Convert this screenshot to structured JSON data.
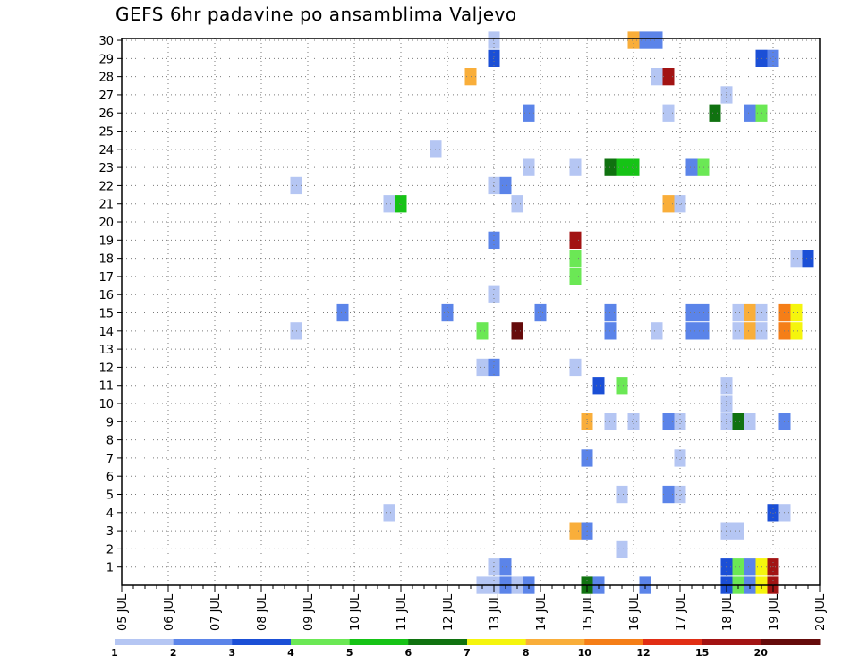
{
  "title": "GEFS 6hr padavine po ansamblima Valjevo",
  "chart_data": {
    "type": "heatmap",
    "title": "GEFS 6hr padavine po ansamblima Valjevo",
    "x_categories": [
      "05 JUL",
      "06 JUL",
      "07 JUL",
      "08 JUL",
      "09 JUL",
      "10 JUL",
      "11 JUL",
      "12 JUL",
      "13 JUL",
      "14 JUL",
      "15 JUL",
      "16 JUL",
      "17 JUL",
      "18 JUL",
      "19 JUL",
      "20 JUL"
    ],
    "x_range_days": [
      5,
      20
    ],
    "y_tick_labels": [
      "1",
      "2",
      "3",
      "4",
      "5",
      "6",
      "7",
      "8",
      "9",
      "10",
      "11",
      "12",
      "13",
      "14",
      "15",
      "16",
      "17",
      "18",
      "19",
      "20",
      "21",
      "22",
      "23",
      "24",
      "25",
      "26",
      "27",
      "28",
      "29",
      "30"
    ],
    "y_range": [
      0,
      30
    ],
    "grid": true,
    "colorbar": {
      "labels": [
        "1",
        "2",
        "3",
        "4",
        "5",
        "6",
        "7",
        "8",
        "10",
        "12",
        "15",
        "20"
      ],
      "colors": [
        "#b5c6f3",
        "#5b84e9",
        "#1b4fd6",
        "#6be855",
        "#16c316",
        "#107210",
        "#f5f50d",
        "#f9ae3a",
        "#f57e17",
        "#e12e14",
        "#a21313",
        "#650b0b"
      ]
    },
    "cells": [
      {
        "day": 13.0,
        "member": 0,
        "value": 1
      },
      {
        "day": 13.25,
        "member": 0,
        "value": 2
      },
      {
        "day": 12.75,
        "member": 0,
        "value": 1
      },
      {
        "day": 13.75,
        "member": 0,
        "value": 2
      },
      {
        "day": 13.5,
        "member": 0,
        "value": 1
      },
      {
        "day": 15.0,
        "member": 0,
        "value": 6
      },
      {
        "day": 15.25,
        "member": 0,
        "value": 2
      },
      {
        "day": 16.25,
        "member": 0,
        "value": 2
      },
      {
        "day": 18.0,
        "member": 0,
        "value": 3
      },
      {
        "day": 18.25,
        "member": 0,
        "value": 4
      },
      {
        "day": 18.5,
        "member": 0,
        "value": 2
      },
      {
        "day": 18.75,
        "member": 0,
        "value": 7
      },
      {
        "day": 19.0,
        "member": 0,
        "value": 15
      },
      {
        "day": 13.0,
        "member": 1,
        "value": 1
      },
      {
        "day": 13.25,
        "member": 1,
        "value": 2
      },
      {
        "day": 18.0,
        "member": 1,
        "value": 3
      },
      {
        "day": 18.25,
        "member": 1,
        "value": 4
      },
      {
        "day": 18.5,
        "member": 1,
        "value": 2
      },
      {
        "day": 18.75,
        "member": 1,
        "value": 7
      },
      {
        "day": 19.0,
        "member": 1,
        "value": 15
      },
      {
        "day": 15.75,
        "member": 2,
        "value": 1
      },
      {
        "day": 14.75,
        "member": 3,
        "value": 8
      },
      {
        "day": 15.0,
        "member": 3,
        "value": 2
      },
      {
        "day": 18.0,
        "member": 3,
        "value": 1
      },
      {
        "day": 18.25,
        "member": 3,
        "value": 1
      },
      {
        "day": 10.75,
        "member": 4,
        "value": 1
      },
      {
        "day": 19.0,
        "member": 4,
        "value": 3
      },
      {
        "day": 19.25,
        "member": 4,
        "value": 1
      },
      {
        "day": 15.75,
        "member": 5,
        "value": 1
      },
      {
        "day": 16.75,
        "member": 5,
        "value": 2
      },
      {
        "day": 17.0,
        "member": 5,
        "value": 1
      },
      {
        "day": 15.0,
        "member": 7,
        "value": 2
      },
      {
        "day": 17.0,
        "member": 7,
        "value": 1
      },
      {
        "day": 15.0,
        "member": 9,
        "value": 8
      },
      {
        "day": 15.5,
        "member": 9,
        "value": 1
      },
      {
        "day": 16.0,
        "member": 9,
        "value": 1
      },
      {
        "day": 16.75,
        "member": 9,
        "value": 2
      },
      {
        "day": 17.0,
        "member": 9,
        "value": 1
      },
      {
        "day": 18.0,
        "member": 9,
        "value": 1
      },
      {
        "day": 18.25,
        "member": 9,
        "value": 6
      },
      {
        "day": 18.5,
        "member": 9,
        "value": 1
      },
      {
        "day": 19.25,
        "member": 9,
        "value": 2
      },
      {
        "day": 18.0,
        "member": 10,
        "value": 1
      },
      {
        "day": 15.25,
        "member": 11,
        "value": 3
      },
      {
        "day": 15.75,
        "member": 11,
        "value": 4
      },
      {
        "day": 18.0,
        "member": 11,
        "value": 1
      },
      {
        "day": 12.75,
        "member": 12,
        "value": 1
      },
      {
        "day": 13.0,
        "member": 12,
        "value": 2
      },
      {
        "day": 14.75,
        "member": 12,
        "value": 1
      },
      {
        "day": 8.75,
        "member": 14,
        "value": 1
      },
      {
        "day": 12.75,
        "member": 14,
        "value": 4
      },
      {
        "day": 13.5,
        "member": 14,
        "value": 20
      },
      {
        "day": 15.5,
        "member": 14,
        "value": 2
      },
      {
        "day": 16.5,
        "member": 14,
        "value": 1
      },
      {
        "day": 17.25,
        "member": 14,
        "value": 2
      },
      {
        "day": 17.5,
        "member": 14,
        "value": 2
      },
      {
        "day": 18.25,
        "member": 14,
        "value": 1
      },
      {
        "day": 18.5,
        "member": 14,
        "value": 8
      },
      {
        "day": 18.75,
        "member": 14,
        "value": 1
      },
      {
        "day": 19.25,
        "member": 14,
        "value": 10
      },
      {
        "day": 19.5,
        "member": 14,
        "value": 7
      },
      {
        "day": 9.75,
        "member": 15,
        "value": 2
      },
      {
        "day": 12.0,
        "member": 15,
        "value": 2
      },
      {
        "day": 14.0,
        "member": 15,
        "value": 2
      },
      {
        "day": 15.5,
        "member": 15,
        "value": 2
      },
      {
        "day": 17.25,
        "member": 15,
        "value": 2
      },
      {
        "day": 17.5,
        "member": 15,
        "value": 2
      },
      {
        "day": 18.25,
        "member": 15,
        "value": 1
      },
      {
        "day": 18.5,
        "member": 15,
        "value": 8
      },
      {
        "day": 18.75,
        "member": 15,
        "value": 1
      },
      {
        "day": 19.25,
        "member": 15,
        "value": 10
      },
      {
        "day": 19.5,
        "member": 15,
        "value": 7
      },
      {
        "day": 13.0,
        "member": 16,
        "value": 1
      },
      {
        "day": 14.75,
        "member": 17,
        "value": 4
      },
      {
        "day": 14.75,
        "member": 18,
        "value": 4
      },
      {
        "day": 19.5,
        "member": 18,
        "value": 1
      },
      {
        "day": 19.75,
        "member": 18,
        "value": 3
      },
      {
        "day": 13.0,
        "member": 19,
        "value": 2
      },
      {
        "day": 14.75,
        "member": 19,
        "value": 15
      },
      {
        "day": 10.75,
        "member": 21,
        "value": 1
      },
      {
        "day": 11.0,
        "member": 21,
        "value": 5
      },
      {
        "day": 13.5,
        "member": 21,
        "value": 1
      },
      {
        "day": 16.75,
        "member": 21,
        "value": 8
      },
      {
        "day": 17.0,
        "member": 21,
        "value": 1
      },
      {
        "day": 8.75,
        "member": 22,
        "value": 1
      },
      {
        "day": 13.0,
        "member": 22,
        "value": 1
      },
      {
        "day": 13.25,
        "member": 22,
        "value": 2
      },
      {
        "day": 13.75,
        "member": 23,
        "value": 1
      },
      {
        "day": 14.75,
        "member": 23,
        "value": 1
      },
      {
        "day": 15.5,
        "member": 23,
        "value": 6
      },
      {
        "day": 15.75,
        "member": 23,
        "value": 5
      },
      {
        "day": 16.0,
        "member": 23,
        "value": 5
      },
      {
        "day": 17.25,
        "member": 23,
        "value": 2
      },
      {
        "day": 17.5,
        "member": 23,
        "value": 4
      },
      {
        "day": 11.75,
        "member": 24,
        "value": 1
      },
      {
        "day": 13.75,
        "member": 26,
        "value": 2
      },
      {
        "day": 16.75,
        "member": 26,
        "value": 1
      },
      {
        "day": 17.75,
        "member": 26,
        "value": 6
      },
      {
        "day": 18.5,
        "member": 26,
        "value": 2
      },
      {
        "day": 18.75,
        "member": 26,
        "value": 4
      },
      {
        "day": 18.0,
        "member": 27,
        "value": 1
      },
      {
        "day": 12.5,
        "member": 28,
        "value": 8
      },
      {
        "day": 16.5,
        "member": 28,
        "value": 1
      },
      {
        "day": 16.75,
        "member": 28,
        "value": 15
      },
      {
        "day": 13.0,
        "member": 29,
        "value": 3
      },
      {
        "day": 18.75,
        "member": 29,
        "value": 3
      },
      {
        "day": 19.0,
        "member": 29,
        "value": 2
      },
      {
        "day": 13.0,
        "member": 30,
        "value": 1
      },
      {
        "day": 16.0,
        "member": 30,
        "value": 8
      },
      {
        "day": 16.25,
        "member": 30,
        "value": 2
      },
      {
        "day": 16.5,
        "member": 30,
        "value": 2
      }
    ]
  }
}
